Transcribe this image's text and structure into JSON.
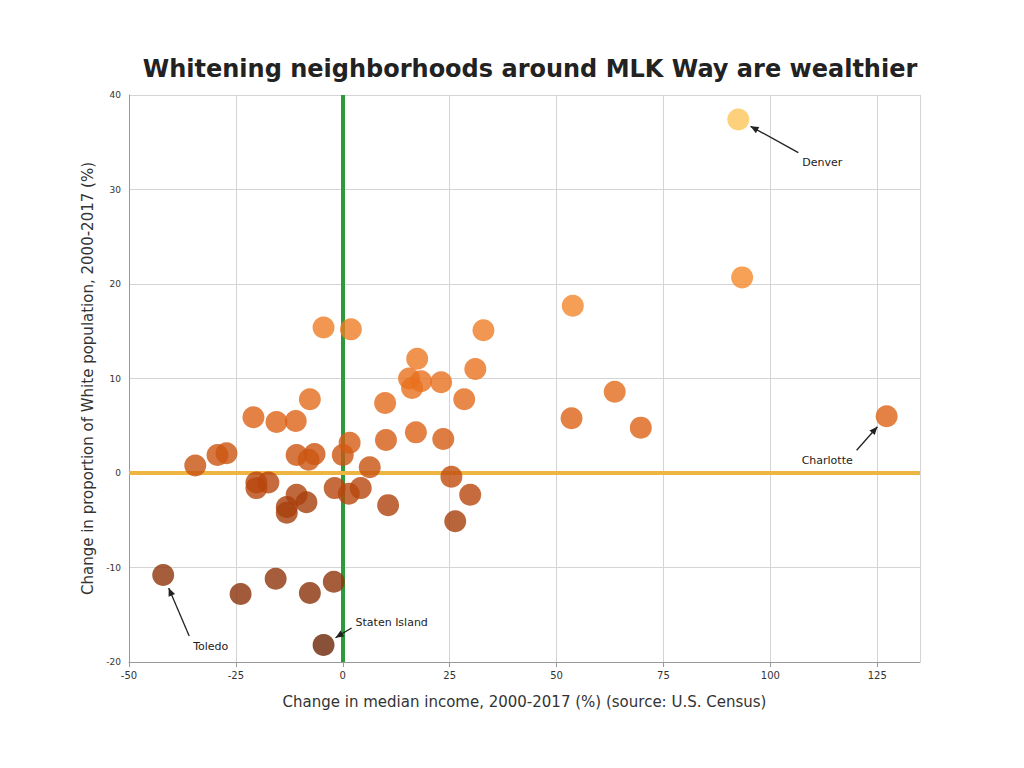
{
  "chart_data": {
    "type": "scatter",
    "title": "Whitening neighborhoods around MLK Way are wealthier",
    "x_label": "Change in median income, 2000-2017 (%) (source: U.S. Census)",
    "y_label": "Change in proportion of White population, 2000-2017 (%)",
    "x": [
      92.5,
      93.4,
      53.8,
      127.2,
      63.6,
      69.7,
      53.5,
      32.9,
      31.0,
      17.4,
      15.5,
      18.3,
      16.2,
      23.0,
      28.4,
      9.9,
      17.1,
      10.1,
      23.5,
      25.4,
      29.8,
      26.3,
      10.6,
      -4.5,
      1.9,
      -7.7,
      -20.9,
      -15.5,
      -11.0,
      -29.3,
      -27.2,
      -34.5,
      -10.8,
      -8.0,
      -6.6,
      0.0,
      1.6,
      6.3,
      -20.2,
      -20.2,
      -17.4,
      -10.8,
      -8.5,
      -13.1,
      -13.1,
      -1.9,
      1.4,
      4.2,
      -42.0,
      -23.9,
      -15.7,
      -7.7,
      -2.1,
      -4.5
    ],
    "values": [
      37.4,
      20.7,
      17.7,
      6.0,
      8.6,
      4.8,
      5.8,
      15.1,
      11.0,
      12.1,
      10.0,
      9.7,
      9.0,
      9.6,
      7.8,
      7.4,
      4.3,
      3.5,
      3.6,
      -0.4,
      -2.3,
      -5.1,
      -3.4,
      15.4,
      15.2,
      7.8,
      5.9,
      5.4,
      5.5,
      1.9,
      2.1,
      0.8,
      1.9,
      1.4,
      2.0,
      1.9,
      3.2,
      0.6,
      -1.0,
      -1.6,
      -1.0,
      -2.3,
      -3.1,
      -3.6,
      -4.2,
      -1.6,
      -2.2,
      -1.6,
      -10.8,
      -12.8,
      -11.2,
      -12.7,
      -11.5,
      -18.2
    ],
    "colors": [
      "#fdc55a",
      "#f48a2b",
      "#f2862a",
      "#dd6318",
      "#e36c1c",
      "#dd6318",
      "#dd6318",
      "#ee7d26",
      "#e8721f",
      "#ec7822",
      "#e8701e",
      "#e8701e",
      "#e8701e",
      "#e8701e",
      "#e36c1c",
      "#e36c1c",
      "#dd6318",
      "#d45b14",
      "#d45b14",
      "#c04c0e",
      "#b8460c",
      "#a83f0b",
      "#b0420c",
      "#ee7d26",
      "#ee7d26",
      "#e36c1c",
      "#dd6318",
      "#dd6318",
      "#dd6318",
      "#cc5512",
      "#cc5512",
      "#c8520f",
      "#cc5512",
      "#cc5512",
      "#cc5512",
      "#cc5512",
      "#d45b14",
      "#c8520f",
      "#b8460c",
      "#b8460c",
      "#b8460c",
      "#b0420c",
      "#a83f0b",
      "#a83f0b",
      "#a83f0b",
      "#b8460c",
      "#b8460c",
      "#b8460c",
      "#8e340a",
      "#8a3209",
      "#8e340a",
      "#8a3209",
      "#8e340a",
      "#6b2505"
    ],
    "xlim": [
      -50,
      135
    ],
    "xticks": [
      -50,
      -25,
      0,
      25,
      50,
      75,
      100,
      125
    ],
    "ylim": [
      -20,
      40
    ],
    "yticks": [
      -20,
      -10,
      0,
      10,
      20,
      30,
      40
    ],
    "grid": true,
    "reference_lines": [
      {
        "axis": "x",
        "value": 0,
        "color": "#2f9a3c"
      },
      {
        "axis": "y",
        "value": 0,
        "color": "#efb543"
      }
    ],
    "annotations": [
      {
        "text": "Denver",
        "x": 92.5,
        "y": 37.4
      },
      {
        "text": "Charlotte",
        "x": 127.2,
        "y": 6.0
      },
      {
        "text": "Toledo",
        "x": -42.0,
        "y": -10.8
      },
      {
        "text": "Staten Island",
        "x": -4.5,
        "y": -18.2
      }
    ]
  }
}
